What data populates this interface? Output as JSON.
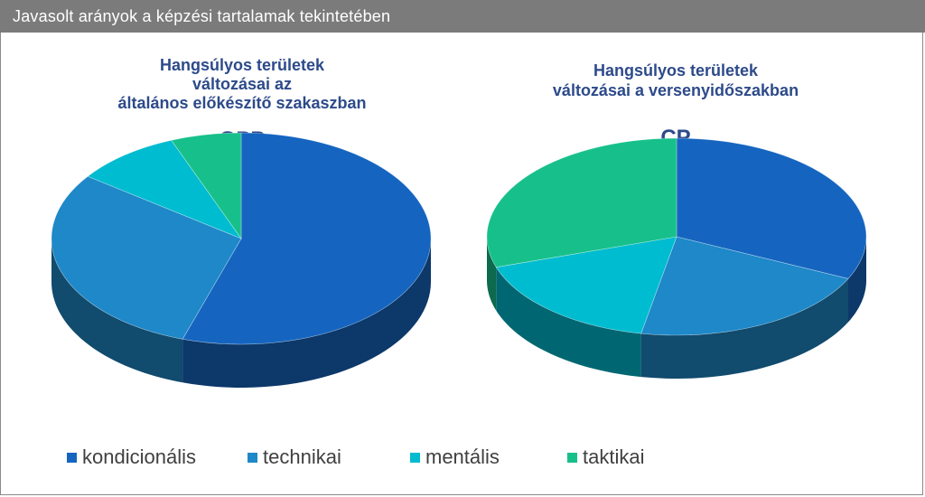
{
  "header": {
    "title": "Javasolt arányok a képzési tartalamak tekintetében"
  },
  "legend": [
    {
      "label": "kondicionális",
      "color": "#1565c0"
    },
    {
      "label": "technikai",
      "color": "#1e88c8"
    },
    {
      "label": "mentális",
      "color": "#00bcd0"
    },
    {
      "label": "taktikai",
      "color": "#17c08a"
    }
  ],
  "chart_data": [
    {
      "type": "pie",
      "title_lines": [
        "Hangsúlyos területek",
        "változásai az",
        "általános előkészítő szakaszban"
      ],
      "label": "GPP",
      "categories": [
        "kondicionális",
        "technikai",
        "mentális",
        "taktikai"
      ],
      "values": [
        55,
        30,
        9,
        6
      ]
    },
    {
      "type": "pie",
      "title_lines": [
        "Hangsúlyos területek",
        "változásai a versenyidőszakban"
      ],
      "label": "CP",
      "categories": [
        "kondicionális",
        "technikai",
        "mentális",
        "taktikai"
      ],
      "values": [
        32,
        21,
        17,
        30
      ]
    }
  ]
}
